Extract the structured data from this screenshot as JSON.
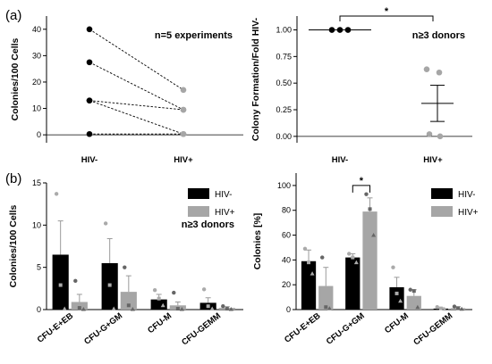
{
  "panel_labels": [
    "(a)",
    "(b)"
  ],
  "colors": {
    "hiv_neg": "#000000",
    "hiv_pos": "#a6a6a6",
    "point_neg": "#aaaaaa",
    "point_pos": "#666666"
  },
  "chart_data": [
    {
      "id": "a_left",
      "type": "scatter",
      "subtype": "paired-lines",
      "ylabel": "Colonies/100 Cells",
      "annotation": "n=5 experiments",
      "categories": [
        "HIV-",
        "HIV+"
      ],
      "yticks": [
        0,
        10,
        20,
        30,
        40
      ],
      "ylim": [
        -3,
        45
      ],
      "pairs": [
        [
          40,
          17
        ],
        [
          27.5,
          9.5
        ],
        [
          13,
          9.5
        ],
        [
          13,
          0.3
        ],
        [
          0.3,
          0.3
        ]
      ]
    },
    {
      "id": "a_right",
      "type": "scatter",
      "ylabel": "Colony Formation/Fold HIV-",
      "annotation": "n≥3 donors",
      "significance": "*",
      "categories": [
        "HIV-",
        "HIV+"
      ],
      "yticks": [
        0,
        0.25,
        0.5,
        0.75,
        1
      ],
      "ytick_labels": [
        "0.00",
        "0.25",
        "0.50",
        "0.75",
        "1.00"
      ],
      "ylim": [
        -0.06,
        1.13
      ],
      "groups": [
        {
          "name": "HIV-",
          "points": [
            1.0,
            1.0,
            1.0
          ],
          "mean": 1.0
        },
        {
          "name": "HIV+",
          "points": [
            0.63,
            0.6,
            0.02,
            0.0
          ],
          "mean": 0.31,
          "error_low": 0.14,
          "error_high": 0.48
        }
      ]
    },
    {
      "id": "b_left",
      "type": "bar",
      "ylabel": "Colonies/100 Cells",
      "annotation": "n≥3 donors",
      "categories": [
        "CFU-E+EB",
        "CFU-G+GM",
        "CFU-M",
        "CFU-GEMM"
      ],
      "yticks": [
        0,
        5,
        10,
        15
      ],
      "ylim": [
        0,
        15
      ],
      "legend_position": "top-right",
      "series": [
        {
          "name": "HIV-",
          "values": [
            6.5,
            5.5,
            1.2,
            0.8
          ],
          "errors": [
            4.0,
            2.9,
            0.6,
            0.6
          ],
          "points": [
            [
              13.7,
              2.9,
              0.1
            ],
            [
              10.2,
              2.9,
              0.1
            ],
            [
              2.3,
              1.3,
              0.5
            ],
            [
              2.4,
              0.4,
              0.1
            ]
          ]
        },
        {
          "name": "HIV+",
          "values": [
            0.9,
            2.1,
            0.5,
            0.2
          ],
          "errors": [
            0.9,
            1.9,
            0.4,
            0.15
          ],
          "points": [
            [
              3.4,
              0.2,
              0.05
            ],
            [
              5.0,
              0.5,
              0.05
            ],
            [
              2.0,
              0.1,
              0.05
            ],
            [
              0.4,
              0.1,
              0.05
            ]
          ]
        }
      ]
    },
    {
      "id": "b_right",
      "type": "bar",
      "ylabel": "Colonies [%]",
      "significance": "*",
      "categories": [
        "CFU-E+EB",
        "CFU-G+GM",
        "CFU-M",
        "CFU-GEMM"
      ],
      "yticks": [
        0,
        20,
        40,
        60,
        80,
        100
      ],
      "ylim": [
        0,
        110
      ],
      "legend_position": "top-right",
      "series": [
        {
          "name": "HIV-",
          "values": [
            39,
            42,
            18,
            0.8
          ],
          "errors": [
            9,
            3,
            8,
            0.8
          ],
          "points": [
            [
              49,
              38,
              29
            ],
            [
              45,
              42,
              38
            ],
            [
              34,
              13,
              7
            ],
            [
              2,
              1,
              0.5
            ]
          ]
        },
        {
          "name": "HIV+",
          "values": [
            19,
            79,
            11,
            1.2
          ],
          "errors": [
            15,
            11,
            5,
            1.2
          ],
          "points": [
            [
              42,
              2,
              1
            ],
            [
              93,
              81,
              60
            ],
            [
              16,
              15,
              2
            ],
            [
              2.5,
              1,
              0.5
            ]
          ]
        }
      ]
    }
  ]
}
